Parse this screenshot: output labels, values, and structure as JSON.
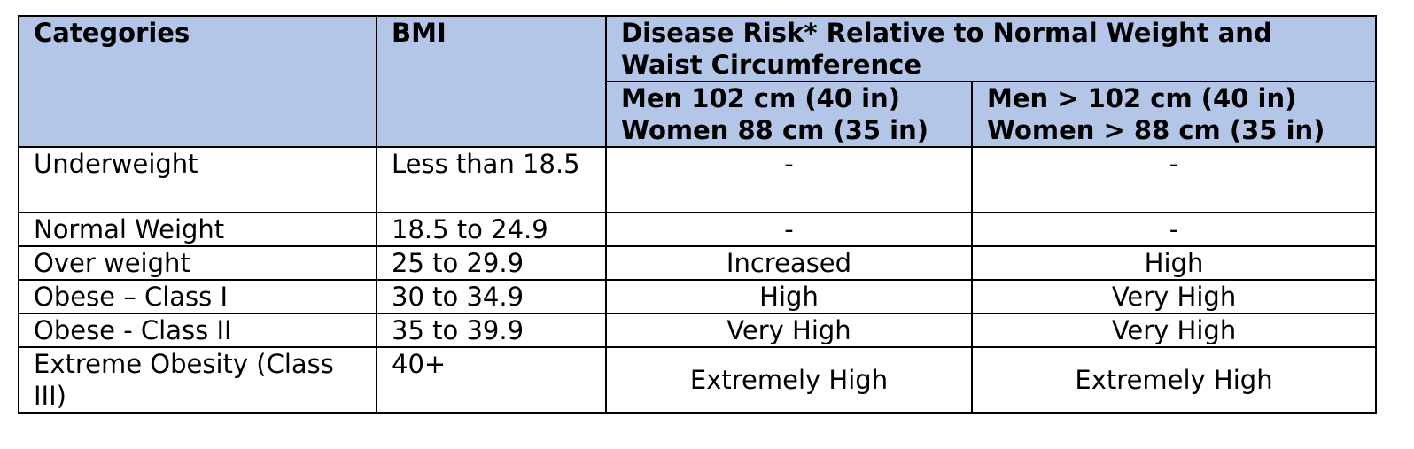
{
  "table": {
    "headers": {
      "categories": "Categories",
      "bmi": "BMI",
      "disease_risk": "Disease Risk* Relative to Normal Weight and Waist Circumference",
      "waist_low": {
        "line1": "Men 102 cm (40 in)",
        "line2": "Women 88 cm (35 in)"
      },
      "waist_high": {
        "line1": "Men > 102 cm (40 in)",
        "line2": "Women > 88 cm (35 in)"
      }
    },
    "rows": [
      {
        "category": "Underweight",
        "bmi": "Less than 18.5",
        "risk_low": "-",
        "risk_high": "-"
      },
      {
        "category": "Normal Weight",
        "bmi": "18.5 to  24.9",
        "risk_low": "-",
        "risk_high": "-"
      },
      {
        "category": "Over weight",
        "bmi": "25 to 29.9",
        "risk_low": "Increased",
        "risk_high": "High"
      },
      {
        "category": "Obese – Class I",
        "bmi": "30 to 34.9",
        "risk_low": "High",
        "risk_high": "Very High"
      },
      {
        "category": "Obese - Class II",
        "bmi": "35 to 39.9",
        "risk_low": "Very High",
        "risk_high": "Very High"
      },
      {
        "category": "Extreme Obesity (Class III)",
        "bmi": "40+",
        "risk_low": "Extremely High",
        "risk_high": "Extremely High"
      }
    ]
  },
  "colors": {
    "header_background": "#b4c6e7",
    "border": "#000000"
  }
}
